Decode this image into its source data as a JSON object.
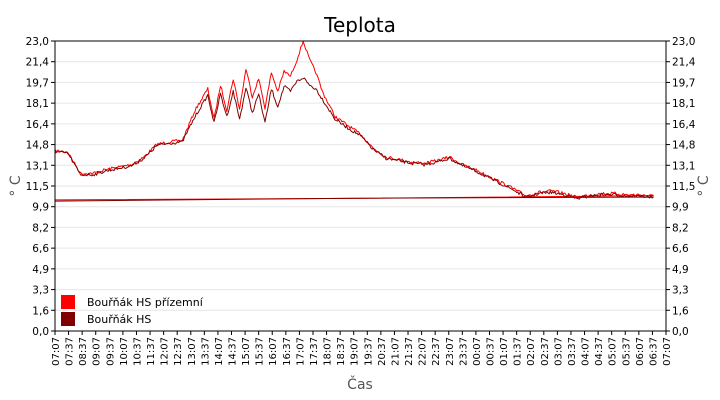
{
  "chart_data": {
    "type": "line",
    "title": "Teplota",
    "xlabel": "Čas",
    "ylabel": "° C",
    "ylabel_right": "° C",
    "ylim": [
      0,
      23
    ],
    "y_ticks": [
      "0,0",
      "1,6",
      "3,3",
      "4,9",
      "6,6",
      "8,2",
      "9,9",
      "11,5",
      "13,1",
      "14,8",
      "16,4",
      "18,1",
      "19,7",
      "21,4",
      "23,0"
    ],
    "x_ticks": [
      "07:07",
      "07:37",
      "08:37",
      "09:07",
      "09:37",
      "10:07",
      "10:37",
      "11:37",
      "12:07",
      "12:37",
      "13:07",
      "13:37",
      "14:07",
      "14:37",
      "15:07",
      "15:37",
      "16:07",
      "16:37",
      "17:07",
      "17:37",
      "18:07",
      "18:37",
      "19:07",
      "19:37",
      "20:37",
      "21:07",
      "21:37",
      "22:07",
      "22:37",
      "23:07",
      "23:37",
      "00:07",
      "00:37",
      "01:07",
      "01:37",
      "02:07",
      "02:37",
      "03:07",
      "03:37",
      "04:07",
      "04:37",
      "05:07",
      "05:37",
      "06:07",
      "06:37",
      "07:07"
    ],
    "grid": true,
    "legend_position": "bottom-left",
    "series": [
      {
        "name": "Bouřňák HS přízemní",
        "color": "#ff0000",
        "x": [
          "07:07",
          "07:37",
          "08:07",
          "08:37",
          "09:07",
          "09:37",
          "10:07",
          "10:37",
          "11:07",
          "11:37",
          "12:07",
          "12:37",
          "13:07",
          "13:22",
          "13:37",
          "13:52",
          "14:07",
          "14:22",
          "14:37",
          "14:52",
          "15:07",
          "15:22",
          "15:37",
          "15:52",
          "16:07",
          "16:22",
          "16:37",
          "16:52",
          "17:07",
          "17:22",
          "17:37",
          "18:07",
          "18:37",
          "19:07",
          "19:37",
          "20:07",
          "20:37",
          "21:07",
          "21:37",
          "22:07",
          "22:37",
          "23:07",
          "23:37",
          "00:07",
          "00:37",
          "01:07",
          "01:37",
          "02:07",
          "02:37",
          "03:07",
          "03:37",
          "04:07",
          "04:37",
          "05:07",
          "05:37",
          "06:07",
          "06:37",
          "07:07"
        ],
        "values": [
          14.3,
          14.2,
          12.5,
          12.5,
          12.8,
          13.0,
          13.2,
          13.8,
          14.8,
          15.0,
          15.1,
          17.5,
          19.2,
          16.8,
          19.5,
          17.5,
          20.0,
          17.6,
          20.8,
          18.6,
          20.0,
          17.7,
          20.5,
          19.0,
          20.6,
          20.2,
          21.5,
          23.0,
          21.5,
          20.5,
          19.0,
          17.0,
          16.3,
          15.6,
          14.5,
          13.8,
          13.6,
          13.4,
          13.3,
          13.5,
          13.8,
          13.2,
          12.8,
          12.3,
          11.8,
          11.3,
          10.7,
          11.0,
          11.1,
          10.9,
          10.6,
          10.8,
          10.9,
          10.9,
          10.8,
          10.8,
          10.7,
          10.4
        ]
      },
      {
        "name": "Bouřňák HS",
        "color": "#800000",
        "x": [
          "07:07",
          "07:37",
          "08:07",
          "08:37",
          "09:07",
          "09:37",
          "10:07",
          "10:37",
          "11:07",
          "11:37",
          "12:07",
          "12:37",
          "13:07",
          "13:22",
          "13:37",
          "13:52",
          "14:07",
          "14:22",
          "14:37",
          "14:52",
          "15:07",
          "15:22",
          "15:37",
          "15:52",
          "16:07",
          "16:22",
          "16:37",
          "16:52",
          "17:07",
          "17:22",
          "17:37",
          "18:07",
          "18:37",
          "19:07",
          "19:37",
          "20:07",
          "20:37",
          "21:07",
          "21:37",
          "22:07",
          "22:37",
          "23:07",
          "23:37",
          "00:07",
          "00:37",
          "01:07",
          "01:37",
          "02:07",
          "02:37",
          "03:07",
          "03:37",
          "04:07",
          "04:37",
          "05:07",
          "05:37",
          "06:07",
          "06:37",
          "07:07"
        ],
        "values": [
          14.2,
          14.1,
          12.4,
          12.4,
          12.7,
          12.9,
          13.1,
          13.7,
          14.7,
          14.9,
          15.0,
          17.0,
          18.7,
          16.5,
          18.8,
          17.0,
          19.0,
          16.8,
          19.3,
          17.3,
          18.8,
          16.5,
          19.2,
          17.8,
          19.4,
          19.0,
          19.8,
          20.1,
          19.5,
          19.2,
          18.4,
          16.8,
          16.1,
          15.5,
          14.4,
          13.7,
          13.5,
          13.3,
          13.2,
          13.4,
          13.7,
          13.1,
          12.7,
          12.2,
          11.7,
          11.2,
          10.6,
          10.9,
          11.0,
          10.8,
          10.5,
          10.7,
          10.8,
          10.8,
          10.7,
          10.7,
          10.6,
          10.3
        ]
      }
    ]
  }
}
